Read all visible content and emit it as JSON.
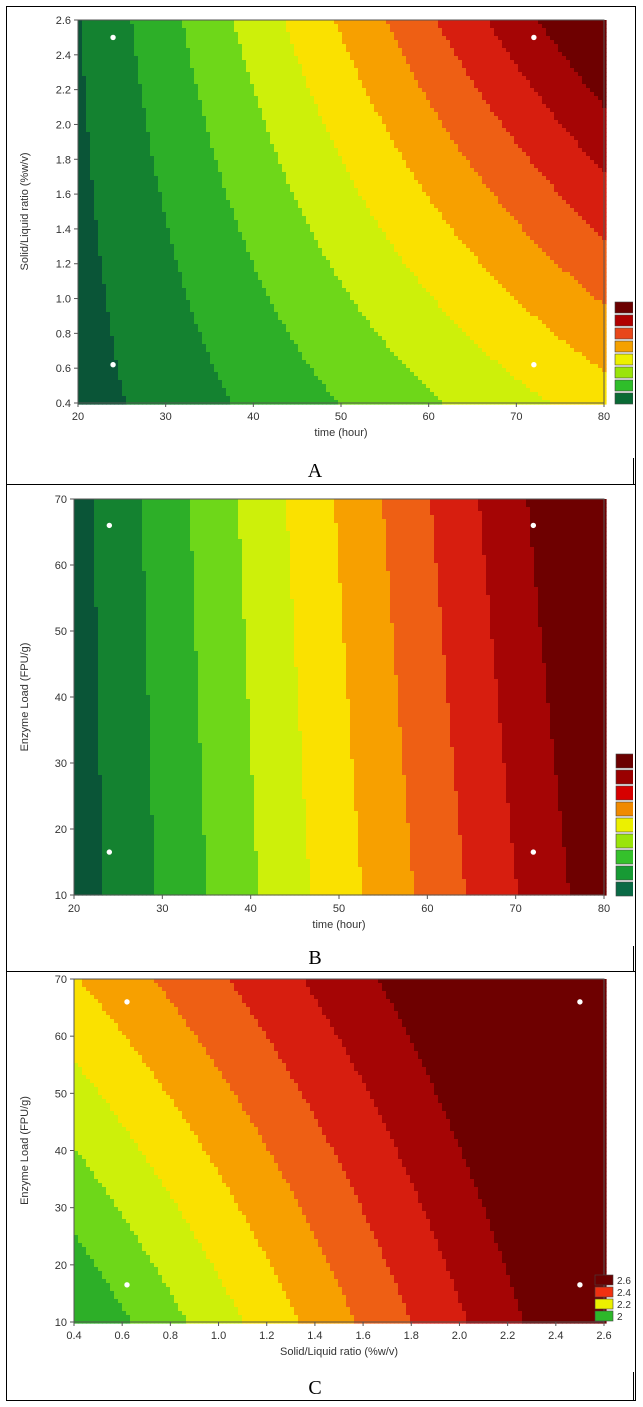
{
  "chart_data": [
    {
      "type": "heatmap",
      "subtype": "contour",
      "panel_label": "A",
      "xlabel": "time (hour)",
      "ylabel": "Solid/Liquid ratio (%w/v)",
      "xlim": [
        20,
        80
      ],
      "ylim": [
        0.4,
        2.6
      ],
      "xticks": [
        "20",
        "30",
        "40",
        "50",
        "60",
        "70",
        "80"
      ],
      "yticks": [
        "0.4",
        "0.6",
        "0.8",
        "1.0",
        "1.2",
        "1.4",
        "1.6",
        "1.8",
        "2.0",
        "2.2",
        "2.4",
        "2.6"
      ],
      "design_points": [
        {
          "x": 24,
          "y": 2.5
        },
        {
          "x": 72,
          "y": 2.5
        },
        {
          "x": 24,
          "y": 0.62
        },
        {
          "x": 72,
          "y": 0.62
        }
      ],
      "legend_colors": [
        "#6b0000",
        "#b00000",
        "#e8471a",
        "#f4a100",
        "#ecf000",
        "#9ae40a",
        "#2fbe2a",
        "#0a6a35"
      ],
      "legend_labels": [],
      "grid": false,
      "legend_placement": "bottom-right"
    },
    {
      "type": "heatmap",
      "subtype": "contour",
      "panel_label": "B",
      "xlabel": "time (hour)",
      "ylabel": "Enzyme Load (FPU/g)",
      "xlim": [
        20,
        80
      ],
      "ylim": [
        10,
        70
      ],
      "xticks": [
        "20",
        "30",
        "40",
        "50",
        "60",
        "70",
        "80"
      ],
      "yticks": [
        "10",
        "20",
        "30",
        "40",
        "50",
        "60",
        "70"
      ],
      "design_points": [
        {
          "x": 24,
          "y": 66
        },
        {
          "x": 72,
          "y": 66
        },
        {
          "x": 24,
          "y": 16.5
        },
        {
          "x": 72,
          "y": 16.5
        }
      ],
      "legend_colors": [
        "#6b0000",
        "#9a0000",
        "#d60000",
        "#f08a00",
        "#ecf000",
        "#9ae40a",
        "#35c12c",
        "#179a34",
        "#0a6a45"
      ],
      "legend_labels": [],
      "grid": false,
      "legend_placement": "bottom-right"
    },
    {
      "type": "heatmap",
      "subtype": "contour",
      "panel_label": "C",
      "xlabel": "Solid/Liquid ratio (%w/v)",
      "ylabel": "Enzyme Load (FPU/g)",
      "xlim": [
        0.4,
        2.6
      ],
      "ylim": [
        10,
        70
      ],
      "xticks": [
        "0.4",
        "0.6",
        "0.8",
        "1.0",
        "1.2",
        "1.4",
        "1.6",
        "1.8",
        "2.0",
        "2.2",
        "2.4",
        "2.6"
      ],
      "yticks": [
        "10",
        "20",
        "30",
        "40",
        "50",
        "60",
        "70"
      ],
      "design_points": [
        {
          "x": 0.62,
          "y": 66
        },
        {
          "x": 2.5,
          "y": 66
        },
        {
          "x": 0.62,
          "y": 16.5
        },
        {
          "x": 2.5,
          "y": 16.5
        }
      ],
      "legend_colors": [
        "#6b0000",
        "#f03010",
        "#ecf000",
        "#2db82a"
      ],
      "legend_labels": [
        "2.6",
        "2.4",
        "2.2",
        "2"
      ],
      "grid": false,
      "legend_placement": "bottom-right"
    }
  ]
}
